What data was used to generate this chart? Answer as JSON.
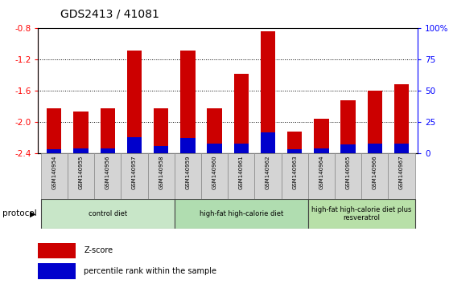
{
  "title": "GDS2413 / 41081",
  "samples": [
    "GSM140954",
    "GSM140955",
    "GSM140956",
    "GSM140957",
    "GSM140958",
    "GSM140959",
    "GSM140960",
    "GSM140961",
    "GSM140962",
    "GSM140963",
    "GSM140964",
    "GSM140965",
    "GSM140966",
    "GSM140967"
  ],
  "zscore": [
    -1.82,
    -1.86,
    -1.82,
    -1.08,
    -1.82,
    -1.08,
    -1.82,
    -1.38,
    -0.84,
    -2.12,
    -1.96,
    -1.72,
    -1.6,
    -1.52
  ],
  "pct_rank": [
    3,
    4,
    4,
    13,
    6,
    12,
    8,
    8,
    17,
    3,
    4,
    7,
    8,
    8
  ],
  "bar_color": "#cc0000",
  "pct_color": "#0000cc",
  "ylim_left": [
    -2.4,
    -0.8
  ],
  "ylim_right": [
    0,
    100
  ],
  "yticks_left": [
    -2.4,
    -2.0,
    -1.6,
    -1.2,
    -0.8
  ],
  "yticks_right": [
    0,
    25,
    50,
    75,
    100
  ],
  "ytick_right_labels": [
    "0",
    "25",
    "50",
    "75",
    "100%"
  ],
  "group_data": [
    [
      0,
      4,
      "control diet",
      "#c8e6c8"
    ],
    [
      5,
      9,
      "high-fat high-calorie diet",
      "#b0ddb0"
    ],
    [
      10,
      13,
      "high-fat high-calorie diet plus\nresveratrol",
      "#b8e0a8"
    ]
  ],
  "protocol_label": "protocol",
  "legend_zscore": "Z-score",
  "legend_pct": "percentile rank within the sample",
  "bar_width": 0.55
}
